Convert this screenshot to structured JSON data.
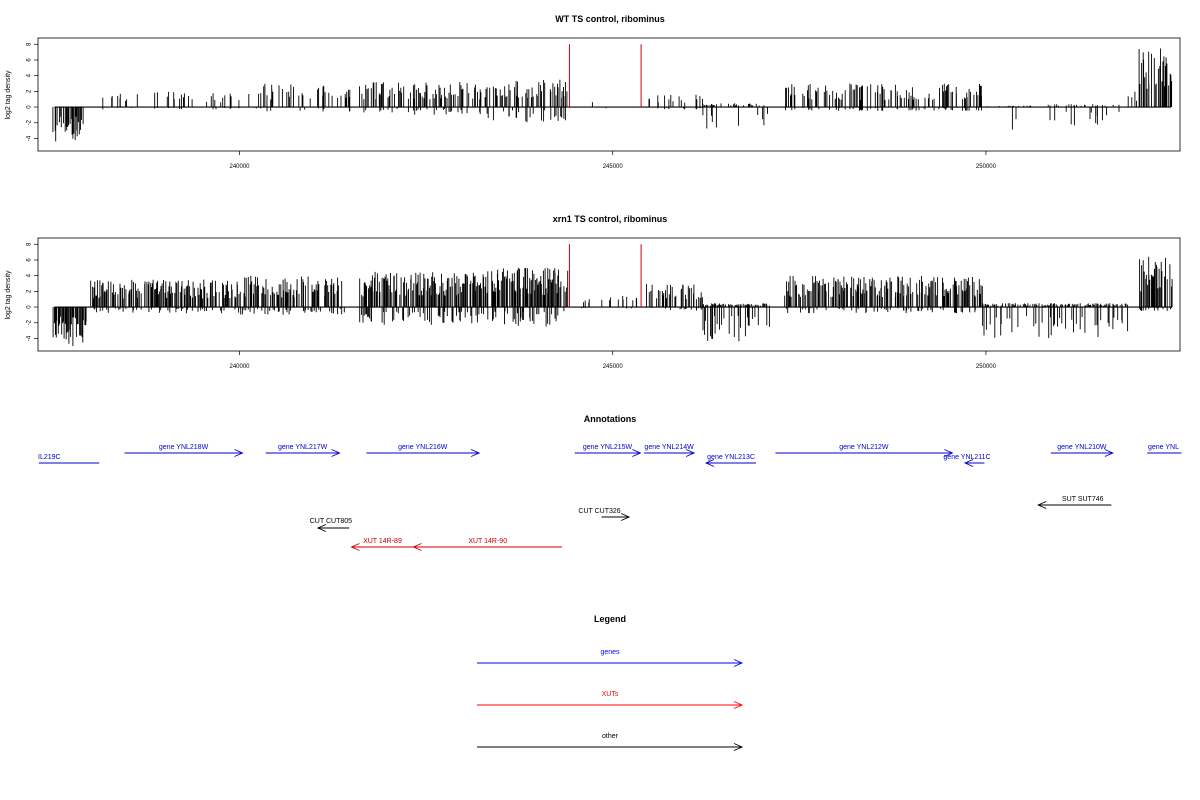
{
  "chart_data": [
    {
      "type": "bar",
      "title": "WT TS control, ribominus",
      "ylabel": "log2 tag density",
      "xlabel": "",
      "xlim": [
        237300,
        252600
      ],
      "ylim": [
        -5.6,
        8.8
      ],
      "yticks": [
        8,
        6,
        4,
        2,
        0,
        -2,
        -4
      ],
      "xticks": [
        240000,
        245000,
        250000
      ],
      "series_color": "#000000",
      "markers": [
        {
          "x": 244420,
          "y": 8,
          "color": "#cc0000"
        },
        {
          "x": 245380,
          "y": 8,
          "color": "#cc0000"
        }
      ]
    },
    {
      "type": "bar",
      "title": "xrn1 TS control, ribominus",
      "ylabel": "log2 tag density",
      "xlabel": "",
      "xlim": [
        237300,
        252600
      ],
      "ylim": [
        -5.6,
        8.8
      ],
      "yticks": [
        8,
        6,
        4,
        2,
        0,
        -2,
        -4
      ],
      "xticks": [
        240000,
        245000,
        250000
      ],
      "series_color": "#000000",
      "markers": [
        {
          "x": 244420,
          "y": 8,
          "color": "#cc0000"
        },
        {
          "x": 245380,
          "y": 8,
          "color": "#cc0000"
        }
      ]
    }
  ],
  "annotations": {
    "title": "Annotations",
    "features": [
      {
        "label": "IL219C",
        "start": 237310,
        "end": 238120,
        "strand": "-",
        "color": "#0000cc",
        "row": 1
      },
      {
        "label": "gene YNL218W",
        "start": 238460,
        "end": 240040,
        "strand": "+",
        "color": "#0000cc",
        "row": 0
      },
      {
        "label": "gene YNL217W",
        "start": 240350,
        "end": 241340,
        "strand": "+",
        "color": "#0000cc",
        "row": 0
      },
      {
        "label": "gene YNL216W",
        "start": 241700,
        "end": 243210,
        "strand": "+",
        "color": "#0000cc",
        "row": 0
      },
      {
        "label": "gene YNL215W",
        "start": 244490,
        "end": 245370,
        "strand": "+",
        "color": "#0000cc",
        "row": 0
      },
      {
        "label": "gene YNL214W",
        "start": 245420,
        "end": 246090,
        "strand": "+",
        "color": "#0000cc",
        "row": 0
      },
      {
        "label": "gene YNL213C",
        "start": 246250,
        "end": 246920,
        "strand": "-",
        "color": "#0000cc",
        "row": 1
      },
      {
        "label": "gene YNL212W",
        "start": 247180,
        "end": 249550,
        "strand": "+",
        "color": "#0000cc",
        "row": 0
      },
      {
        "label": "gene YNL211C",
        "start": 249720,
        "end": 249980,
        "strand": "-",
        "color": "#0000cc",
        "row": 1
      },
      {
        "label": "gene YNL210W",
        "start": 250870,
        "end": 251700,
        "strand": "+",
        "color": "#0000cc",
        "row": 0
      },
      {
        "label": "gene YNL",
        "start": 252160,
        "end": 252620,
        "strand": "+",
        "color": "#0000cc",
        "row": 0
      },
      {
        "label": "SUT SUT746",
        "start": 250700,
        "end": 251680,
        "strand": "-",
        "color": "#000000",
        "row": 2
      },
      {
        "label": "CUT CUT326",
        "start": 244850,
        "end": 245220,
        "strand": "+",
        "color": "#000000",
        "row": 3
      },
      {
        "label": "CUT CUT805",
        "start": 241050,
        "end": 241470,
        "strand": "-",
        "color": "#000000",
        "row": 4
      },
      {
        "label": "XUT 14R-89",
        "start": 241500,
        "end": 242330,
        "strand": "-",
        "color": "#cc0000",
        "row": 5
      },
      {
        "label": "XUT 14R-90",
        "start": 242330,
        "end": 244320,
        "strand": "-",
        "color": "#cc0000",
        "row": 5
      }
    ]
  },
  "legend": {
    "title": "Legend",
    "items": [
      {
        "label": "genes",
        "color": "#0000ff"
      },
      {
        "label": "XUTs",
        "color": "#ff0000"
      },
      {
        "label": "other",
        "color": "#000000"
      }
    ]
  }
}
